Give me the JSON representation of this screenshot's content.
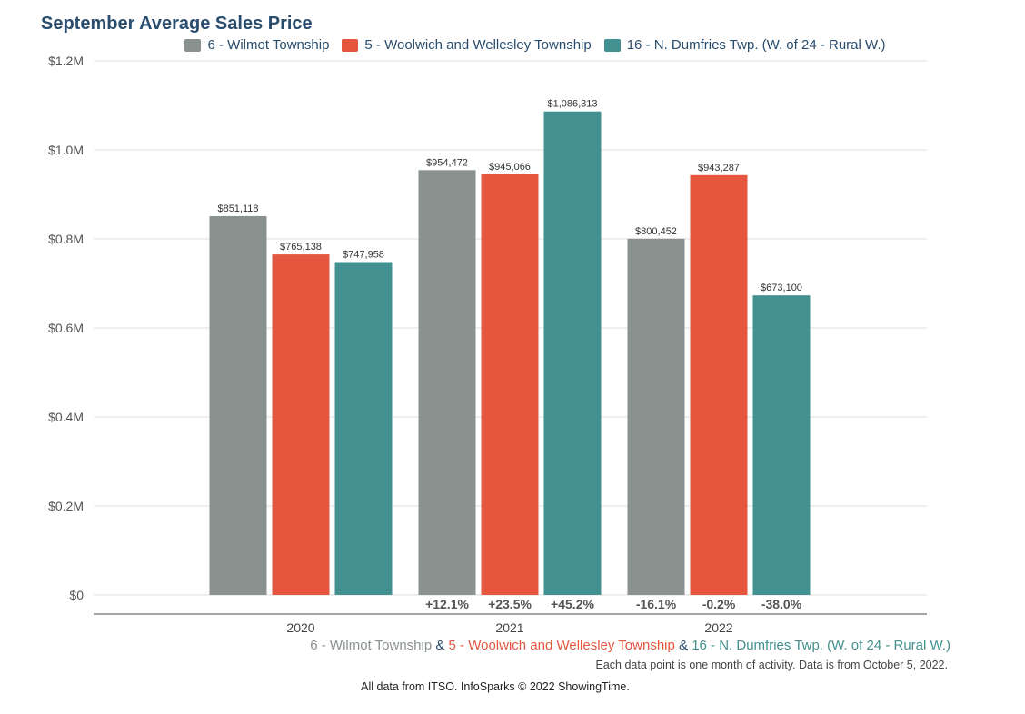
{
  "title": "September Average Sales Price",
  "chart_data": {
    "type": "bar",
    "title": "September Average Sales Price",
    "categories": [
      "2020",
      "2021",
      "2022"
    ],
    "series": [
      {
        "name": "6 - Wilmot Township",
        "color": "#8a9290",
        "values": [
          851118,
          954472,
          800452
        ],
        "labels": [
          "$851,118",
          "$954,472",
          "$800,452"
        ],
        "changes": [
          "",
          "+12.1%",
          "-16.1%"
        ]
      },
      {
        "name": "5 - Woolwich and Wellesley Township",
        "color": "#e5563e",
        "values": [
          765138,
          945066,
          943287
        ],
        "labels": [
          "$765,138",
          "$945,066",
          "$943,287"
        ],
        "changes": [
          "",
          "+23.5%",
          "-0.2%"
        ]
      },
      {
        "name": "16 - N. Dumfries Twp. (W. of 24 - Rural W.)",
        "color": "#429190",
        "values": [
          747958,
          1086313,
          673100
        ],
        "labels": [
          "$747,958",
          "$1,086,313",
          "$673,100"
        ],
        "changes": [
          "",
          "+45.2%",
          "-38.0%"
        ]
      }
    ],
    "ylim": [
      0,
      1200000
    ],
    "yticks": [
      {
        "value": 0,
        "label": "$0"
      },
      {
        "value": 200000,
        "label": "$0.2M"
      },
      {
        "value": 400000,
        "label": "$0.4M"
      },
      {
        "value": 600000,
        "label": "$0.6M"
      },
      {
        "value": 800000,
        "label": "$0.8M"
      },
      {
        "value": 1000000,
        "label": "$1.0M"
      },
      {
        "value": 1200000,
        "label": "$1.2M"
      }
    ],
    "grid": true,
    "legend_position": "top"
  },
  "sub_legend": {
    "sep": "&"
  },
  "footnote": "Each data point is one month of activity. Data is from October 5, 2022.",
  "source": "All data from ITSO. InfoSparks © 2022 ShowingTime."
}
